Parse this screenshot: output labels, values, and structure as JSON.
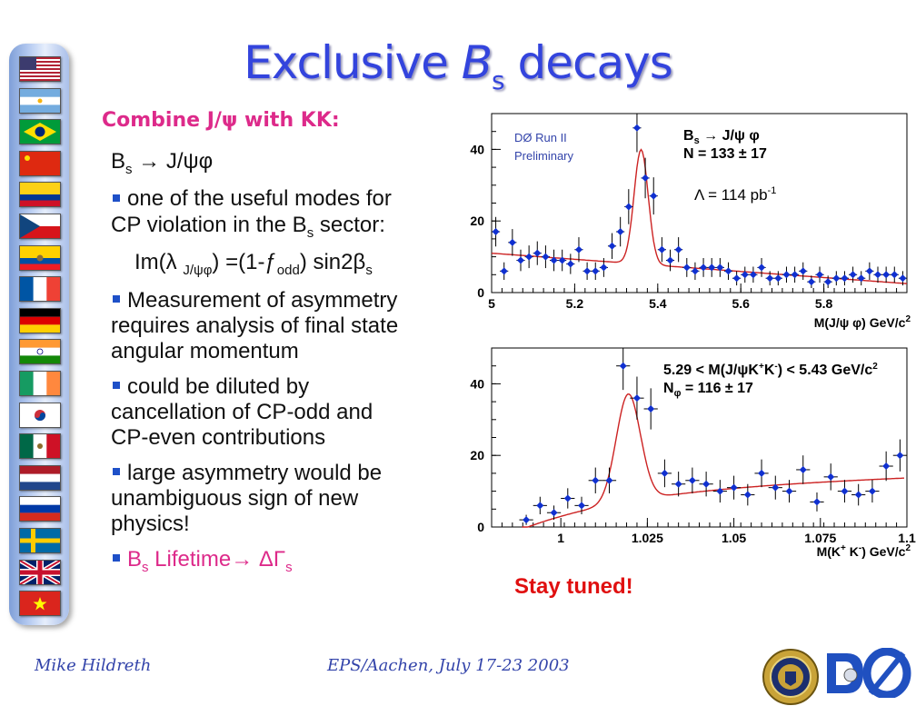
{
  "title": {
    "main": "Exclusive ",
    "italic": "B",
    "sub": "s",
    "tail": " decays"
  },
  "subtitle": "Combine J/ψ with KK:",
  "decay_line": {
    "base": "B",
    "sub": "s",
    "rest": " → J/ψφ"
  },
  "bullets": {
    "b1_line1": "one of the useful modes for",
    "b1_line2": "CP violation in the B",
    "b1_line2_sub": "s",
    "b1_line2_tail": " sector:",
    "formula": {
      "a": "Im(λ ",
      "a_sub": "J/ψφ",
      "b": ") =(1-ƒ",
      "b_sub": "odd",
      "c": ") sin2β",
      "c_sub": "s"
    },
    "b2": [
      "Measurement of asymmetry",
      "requires analysis of final state",
      "angular momentum"
    ],
    "b3": [
      "could be diluted by",
      "cancellation of CP-odd and",
      "CP-even contributions"
    ],
    "b4": [
      "large asymmetry would be",
      "unambiguous sign of new",
      "physics!"
    ],
    "b5": {
      "a": "B",
      "a_sub": "s",
      "b": " Lifetime→ ΔΓ",
      "b_sub": "s"
    }
  },
  "chart_data": [
    {
      "type": "scatter",
      "annotations": {
        "experiment": "DØ Run II",
        "status": "Preliminary",
        "decay": "B",
        "decay_sub": "s",
        "decay_rest": " → J/ψ φ",
        "yield": "N =  133 ± 17",
        "lumi": "Λ = 114 pb",
        "lumi_sup": "-1"
      },
      "xlabel": "M(J/ψ φ) GeV/c",
      "xlabel_sup": "2",
      "xlim": [
        5.0,
        6.0
      ],
      "ylim": [
        0,
        50
      ],
      "xticks": [
        "5",
        "5.2",
        "5.4",
        "5.6",
        "5.8"
      ],
      "yticks": [
        "0",
        "20",
        "40"
      ],
      "x": [
        5.01,
        5.03,
        5.05,
        5.07,
        5.09,
        5.11,
        5.13,
        5.15,
        5.17,
        5.19,
        5.21,
        5.23,
        5.25,
        5.27,
        5.29,
        5.31,
        5.33,
        5.35,
        5.37,
        5.39,
        5.41,
        5.43,
        5.45,
        5.47,
        5.49,
        5.51,
        5.53,
        5.55,
        5.57,
        5.59,
        5.61,
        5.63,
        5.65,
        5.67,
        5.69,
        5.71,
        5.73,
        5.75,
        5.77,
        5.79,
        5.81,
        5.83,
        5.85,
        5.87,
        5.89,
        5.91,
        5.93,
        5.95,
        5.97,
        5.99
      ],
      "y": [
        17,
        6,
        14,
        9,
        10,
        11,
        10,
        9,
        9,
        8,
        12,
        6,
        6,
        7,
        13,
        17,
        24,
        46,
        32,
        27,
        12,
        9,
        12,
        7,
        6,
        7,
        7,
        7,
        6,
        4,
        5,
        5,
        7,
        4,
        4,
        5,
        5,
        6,
        3,
        5,
        3,
        4,
        4,
        5,
        4,
        6,
        5,
        5,
        5,
        4
      ],
      "fit": {
        "peak_mass": 5.36,
        "sigma": 0.017,
        "amplitude": 32,
        "bkg_a": 11,
        "bkg_b": -8.5
      }
    },
    {
      "type": "scatter",
      "annotations": {
        "selection": "5.29 < M(J/ψK",
        "sel_sup1": "+",
        "sel_mid": "K",
        "sel_sup2": "-",
        "sel_end": ") < 5.43 GeV/c",
        "sel_sup3": "2",
        "yield": "N",
        "yield_sub": "φ",
        "yield_tail": " =  116 ± 17"
      },
      "xlabel": "M(K",
      "xlabel_sup1": "+",
      "xlabel_mid": " K",
      "xlabel_sup2": "-",
      "xlabel_tail": ") GeV/c",
      "xlabel_sup3": "2",
      "xlim": [
        0.98,
        1.1
      ],
      "ylim": [
        0,
        50
      ],
      "xticks": [
        "1",
        "1.025",
        "1.05",
        "1.075",
        "1.1"
      ],
      "yticks": [
        "0",
        "20",
        "40"
      ],
      "x": [
        0.99,
        0.994,
        0.998,
        1.002,
        1.006,
        1.01,
        1.014,
        1.018,
        1.022,
        1.026,
        1.03,
        1.034,
        1.038,
        1.042,
        1.046,
        1.05,
        1.054,
        1.058,
        1.062,
        1.066,
        1.07,
        1.074,
        1.078,
        1.082,
        1.086,
        1.09,
        1.094,
        1.098
      ],
      "y": [
        2,
        6,
        4,
        8,
        6,
        13,
        13,
        45,
        36,
        33,
        15,
        12,
        13,
        12,
        10,
        11,
        9,
        15,
        11,
        10,
        16,
        7,
        14,
        10,
        9,
        10,
        17,
        20
      ],
      "fit": {
        "peak_mass": 1.0195,
        "sigma": 0.0035,
        "amplitude": 30,
        "bkg_a": 12,
        "bkg_b": 30
      }
    }
  ],
  "stay_tuned": "Stay tuned!",
  "footer": {
    "author": "Mike Hildreth",
    "conference": "EPS/Aachen, July 17-23 2003"
  },
  "colors": {
    "title": "#3344dd",
    "accent_pink": "#dd2a8a",
    "marker": "#1030d0",
    "fit": "#cc2222",
    "stay_tuned": "#e01010"
  },
  "flags": [
    "usa",
    "argentina",
    "brazil",
    "china",
    "colombia",
    "czech",
    "ecuador",
    "france",
    "germany",
    "india",
    "ireland",
    "korea",
    "mexico",
    "netherlands",
    "russia",
    "sweden",
    "uk",
    "vietnam"
  ]
}
